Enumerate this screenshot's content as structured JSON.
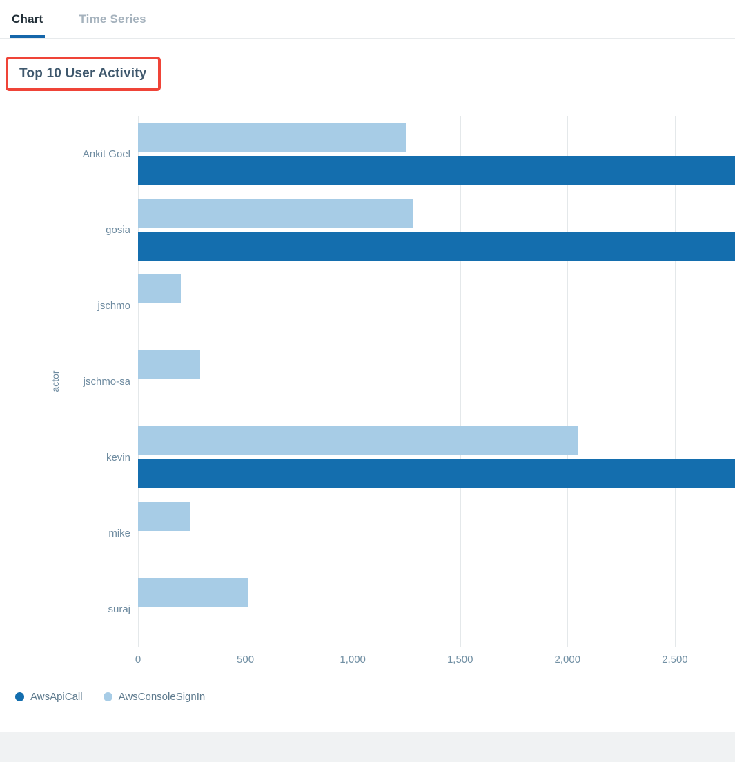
{
  "tabs": [
    {
      "label": "Chart",
      "active": true
    },
    {
      "label": "Time Series",
      "active": false
    }
  ],
  "title": "Top 10 User Activity",
  "annotation": {
    "type": "highlight-box",
    "color": "#ef4438",
    "around": "Top 10 User Activity title"
  },
  "colors": {
    "active_tab_underline": "#1566aa",
    "footer_background": "#f0f2f3",
    "grid_line": "#e4e8ea"
  },
  "chart_data": {
    "type": "bar",
    "orientation": "horizontal",
    "title": "Top 10 User Activity",
    "ylabel": "actor",
    "xlabel": "",
    "categories": [
      "Ankit Goel",
      "gosia",
      "jschmo",
      "jschmo-sa",
      "kevin",
      "mike",
      "suraj"
    ],
    "series": [
      {
        "name": "AwsApiCall",
        "color": "#146eae",
        "values": [
          2800,
          2800,
          0,
          0,
          2800,
          0,
          0
        ],
        "note": "bars for Ankit Goel, gosia and kevin extend past the right edge of the plot (clipped; true values exceed visible axis)"
      },
      {
        "name": "AwsConsoleSignIn",
        "color": "#a7cce6",
        "values": [
          1250,
          1280,
          200,
          290,
          2050,
          240,
          510
        ]
      }
    ],
    "bar_order_in_group": [
      "AwsConsoleSignIn",
      "AwsApiCall"
    ],
    "x_ticks": [
      0,
      500,
      1000,
      1500,
      2000,
      2500
    ],
    "x_tick_labels": [
      "0",
      "500",
      "1,000",
      "1,500",
      "2,000",
      "2,500"
    ],
    "xlim": [
      0,
      2780
    ],
    "grid": true,
    "legend": [
      "AwsApiCall",
      "AwsConsoleSignIn"
    ],
    "legend_position": "bottom-left"
  }
}
